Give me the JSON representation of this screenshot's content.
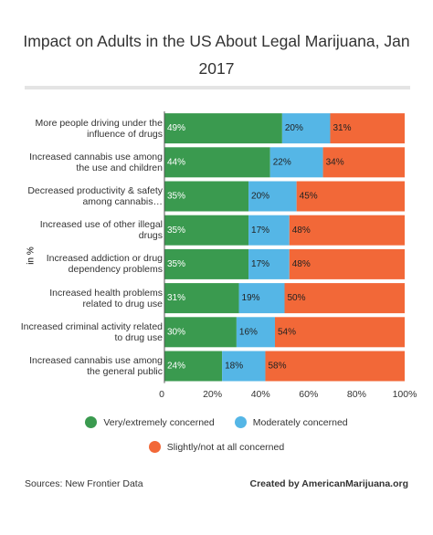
{
  "chart_data": {
    "type": "stacked-bar-horizontal",
    "title": "Impact on Adults in the US About Legal Marijuana, Jan 2017",
    "ylabel": "in %",
    "categories": [
      "More people driving under the influence of drugs",
      "Increased cannabis use among the use and children",
      "Decreased productivity & safety among cannabis…",
      "Increased use of other illegal drugs",
      "Increased addiction or drug dependency problems",
      "Increased health problems related to drug use",
      "Increased criminal activity related to drug use",
      "Increased cannabis use among the general public"
    ],
    "series": [
      {
        "name": "Very/extremely concerned",
        "color": "#3a9a4f",
        "values": [
          49,
          44,
          35,
          35,
          35,
          31,
          30,
          24
        ],
        "value_labels": [
          "49%",
          "44%",
          "35%",
          "35%",
          "35%",
          "31%",
          "30%",
          "24%"
        ]
      },
      {
        "name": "Moderately concerned",
        "color": "#55b6e6",
        "values": [
          20,
          22,
          20,
          17,
          17,
          19,
          16,
          18
        ],
        "value_labels": [
          "20%",
          "22%",
          "20%",
          "17%",
          "17%",
          "19%",
          "16%",
          "18%"
        ]
      },
      {
        "name": "Slightly/not at all concerned",
        "color": "#f26838",
        "values": [
          31,
          34,
          45,
          48,
          48,
          50,
          54,
          58
        ],
        "value_labels": [
          "31%",
          "34%",
          "45%",
          "48%",
          "48%",
          "50%",
          "54%",
          "58%"
        ]
      }
    ],
    "xlim": [
      0,
      100
    ],
    "xticks": [
      0,
      {
        "value": 20,
        "label": "20%"
      },
      {
        "value": 40,
        "label": "40%"
      },
      {
        "value": 60,
        "label": "60%"
      },
      {
        "value": 80,
        "label": "80%"
      },
      {
        "value": 100,
        "label": "100%"
      }
    ],
    "source": "Sources:  New Frontier Data",
    "credit": "Created by AmericanMarijuana.org"
  }
}
